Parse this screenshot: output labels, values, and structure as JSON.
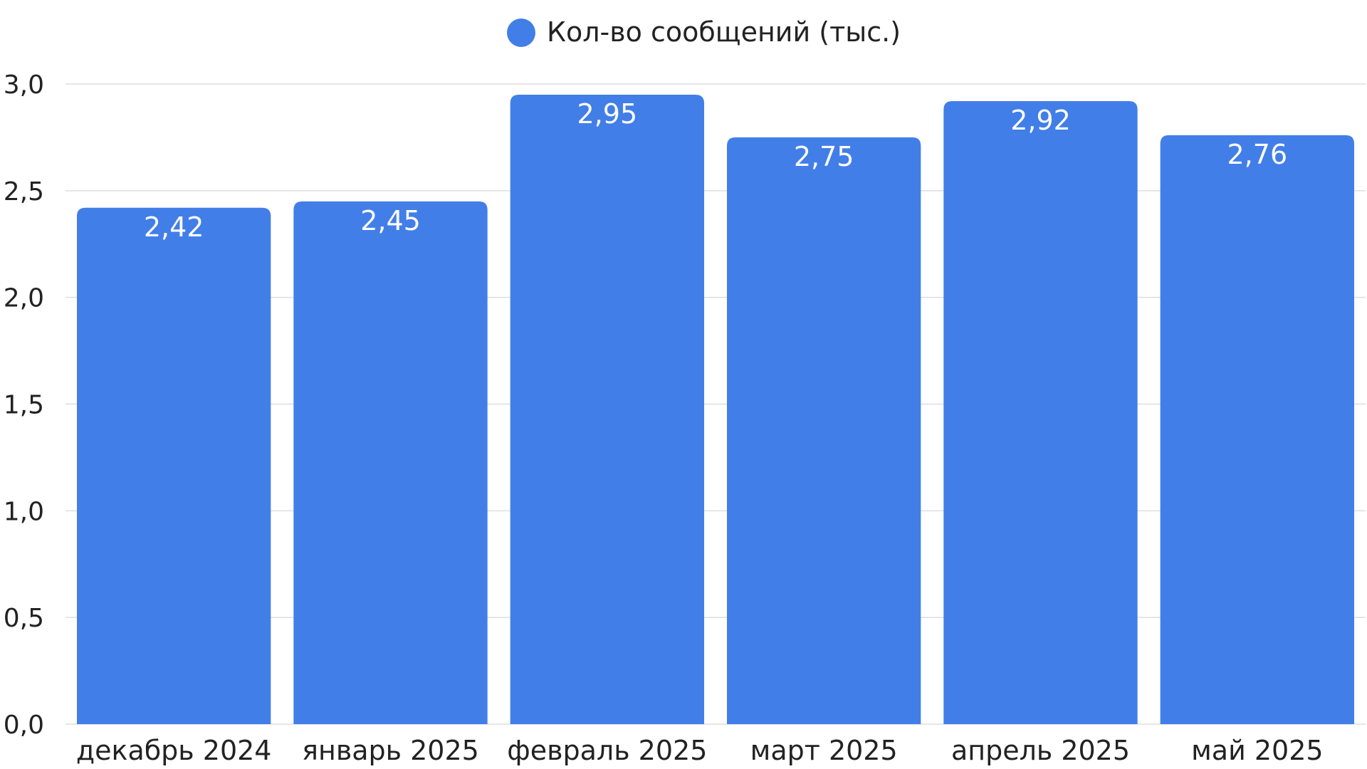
{
  "chart_data": {
    "type": "bar",
    "categories": [
      "декабрь 2024",
      "январь 2025",
      "февраль 2025",
      "март 2025",
      "апрель 2025",
      "май 2025"
    ],
    "series": [
      {
        "name": "Кол-во сообщений (тыс.)",
        "values": [
          2.42,
          2.45,
          2.95,
          2.75,
          2.92,
          2.76
        ],
        "value_labels": [
          "2,42",
          "2,45",
          "2,95",
          "2,75",
          "2,92",
          "2,76"
        ],
        "color": "#427ee8"
      }
    ],
    "yticks": [
      0.0,
      0.5,
      1.0,
      1.5,
      2.0,
      2.5,
      3.0
    ],
    "ytick_labels": [
      "0,0",
      "0,5",
      "1,0",
      "1,5",
      "2,0",
      "2,5",
      "3,0"
    ],
    "ylim": [
      0,
      3.0
    ],
    "grid": true,
    "legend_position": "top-center",
    "title": "",
    "xlabel": "",
    "ylabel": ""
  }
}
